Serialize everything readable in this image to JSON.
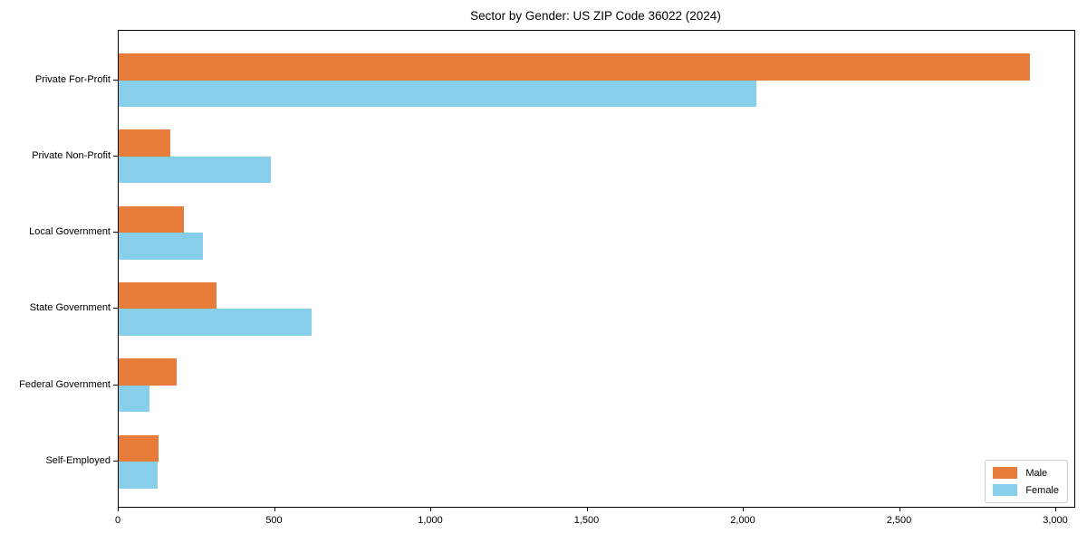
{
  "chart_data": {
    "type": "bar",
    "orientation": "horizontal",
    "title": "Sector by Gender: US ZIP Code 36022 (2024)",
    "categories": [
      "Private For-Profit",
      "Private Non-Profit",
      "Local Government",
      "State Government",
      "Federal Government",
      "Self-Employed"
    ],
    "series": [
      {
        "name": "Male",
        "color": "#e87d3b",
        "values": [
          2915,
          165,
          209,
          313,
          186,
          128
        ]
      },
      {
        "name": "Female",
        "color": "#87ceeb",
        "values": [
          2040,
          487,
          270,
          617,
          99,
          125
        ]
      }
    ],
    "xlabel": "",
    "ylabel": "",
    "xlim": [
      0,
      3058
    ],
    "x_ticks": [
      0,
      500,
      1000,
      1500,
      2000,
      2500,
      3000
    ],
    "x_tick_labels": [
      "0",
      "500",
      "1,000",
      "1,500",
      "2,000",
      "2,500",
      "3,000"
    ],
    "grid": false,
    "legend": {
      "position": "lower right",
      "entries": [
        "Male",
        "Female"
      ]
    },
    "colors": {
      "spine": "#000000",
      "legend_border": "#cccccc",
      "background": "#ffffff",
      "text": "#000000"
    }
  }
}
